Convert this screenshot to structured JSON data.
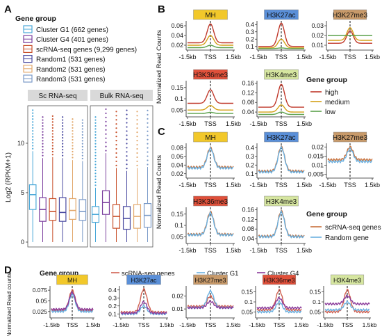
{
  "panel_labels": {
    "A": "A",
    "B": "B",
    "C": "C",
    "D": "D"
  },
  "legendA": {
    "title": "Gene group",
    "items": [
      {
        "label": "Cluster G1 (662 genes)",
        "color": "#4aa8d8"
      },
      {
        "label": "Cluster G4 (401 genes)",
        "color": "#7b3f9e"
      },
      {
        "label": "scRNA-seq genes (9,299 genes)",
        "color": "#c8502a"
      },
      {
        "label": "Random1 (531 genes)",
        "color": "#4a4aa0"
      },
      {
        "label": "Random2 (531 genes)",
        "color": "#e2a86c"
      },
      {
        "label": "Random3 (531 genes)",
        "color": "#7a9ac8"
      }
    ]
  },
  "legendB": {
    "title": "Gene group",
    "items": [
      {
        "label": "high",
        "color": "#c0392b"
      },
      {
        "label": "medium",
        "color": "#d4a017"
      },
      {
        "label": "low",
        "color": "#5aa04a"
      }
    ]
  },
  "legendC": {
    "title": "Gene group",
    "items": [
      {
        "label": "scRNA-seq genes",
        "color": "#c8703a"
      },
      {
        "label": "Random gene",
        "color": "#6ab0e0"
      }
    ]
  },
  "legendD": {
    "title": "Gene group",
    "items": [
      {
        "label": "scRNA-seq genes",
        "color": "#d06050"
      },
      {
        "label": "Cluster G1",
        "color": "#6ab0e0"
      },
      {
        "label": "Cluster G4",
        "color": "#8a3a9a"
      }
    ]
  },
  "axis_text": {
    "ylab_A": "Log2 (RPKM+1)",
    "ylab_BC": "Normalized Read Counts",
    "ylab_D": "Normalized Read counts",
    "x_ticks": [
      "-1.5kb",
      "TSS",
      "1.5kb"
    ]
  },
  "marks": {
    "MH": "MH",
    "H3K27ac": "H3K27ac",
    "H3K27me3": "H3K27me3",
    "H3K36me3": "H3K36me3",
    "H3K4me3": "H3K4me3"
  },
  "colors": {
    "MH": "#f2c82a",
    "H3K27ac": "#5a8fd8",
    "H3K27me3": "#c89a6a",
    "H3K36me3": "#e0503a",
    "H3K4me3": "#d6e6a0",
    "facet": "#d9d9d9"
  },
  "chart_data": [
    {
      "id": "A",
      "type": "box",
      "facets": [
        "Sc RNA-seq",
        "Bulk RNA-seq"
      ],
      "categories": [
        "Cluster G1",
        "Cluster G4",
        "scRNA-seq genes",
        "Random1",
        "Random2",
        "Random3"
      ],
      "yticks": [
        0,
        5,
        10
      ],
      "ylim": [
        0,
        14
      ],
      "ylabel": "Log2 (RPKM+1)",
      "series": [
        {
          "facet": "Sc RNA-seq",
          "boxes": [
            {
              "min": 0,
              "q1": 3.3,
              "median": 4.8,
              "q3": 5.8,
              "max": 9.2
            },
            {
              "min": 0,
              "q1": 2.1,
              "median": 3.3,
              "q3": 4.5,
              "max": 8.5
            },
            {
              "min": 0,
              "q1": 2.2,
              "median": 3.1,
              "q3": 4.4,
              "max": 8.6
            },
            {
              "min": 0,
              "q1": 2.1,
              "median": 3.0,
              "q3": 4.5,
              "max": 8.5
            },
            {
              "min": 0,
              "q1": 2.3,
              "median": 3.2,
              "q3": 4.4,
              "max": 8.3
            },
            {
              "min": 0,
              "q1": 2.2,
              "median": 3.1,
              "q3": 4.3,
              "max": 8.2
            }
          ]
        },
        {
          "facet": "Bulk RNA-seq",
          "boxes": [
            {
              "min": 0,
              "q1": 2.0,
              "median": 2.8,
              "q3": 3.6,
              "max": 5.5
            },
            {
              "min": 0,
              "q1": 2.8,
              "median": 4.0,
              "q3": 5.2,
              "max": 9.0
            },
            {
              "min": 0,
              "q1": 1.4,
              "median": 2.6,
              "q3": 3.8,
              "max": 7.5
            },
            {
              "min": 0,
              "q1": 1.3,
              "median": 2.4,
              "q3": 3.6,
              "max": 7.2
            },
            {
              "min": 0,
              "q1": 1.4,
              "median": 2.6,
              "q3": 3.8,
              "max": 7.5
            },
            {
              "min": 0,
              "q1": 1.5,
              "median": 2.7,
              "q3": 3.9,
              "max": 7.6
            }
          ]
        }
      ]
    },
    {
      "id": "B",
      "type": "line",
      "x": [
        "-1.5kb",
        "TSS",
        "1.5kb"
      ],
      "groups": [
        "high",
        "medium",
        "low"
      ],
      "panels": [
        {
          "mark": "MH",
          "yticks": [
            0.02,
            0.04,
            0.06
          ],
          "ylim": [
            0.01,
            0.07
          ],
          "peaks": [
            0.064,
            0.04,
            0.02
          ],
          "base": [
            0.025,
            0.02,
            0.015
          ]
        },
        {
          "mark": "H3K27ac",
          "yticks": [
            0.1,
            0.2,
            0.3,
            0.4
          ],
          "ylim": [
            0.05,
            0.45
          ],
          "peaks": [
            0.42,
            0.2,
            0.08
          ],
          "base": [
            0.1,
            0.08,
            0.07
          ]
        },
        {
          "mark": "H3K27me3",
          "yticks": [
            0.01,
            0.02,
            0.03
          ],
          "ylim": [
            0.005,
            0.035
          ],
          "peaks": [
            0.025,
            0.028,
            0.02
          ],
          "base": [
            0.012,
            0.015,
            0.02
          ]
        },
        {
          "mark": "H3K36me3",
          "yticks": [
            0.05,
            0.1,
            0.15
          ],
          "ylim": [
            0.02,
            0.18
          ],
          "peaks": [
            0.14,
            0.07,
            0.04
          ],
          "base": [
            0.08,
            0.05,
            0.035
          ]
        },
        {
          "mark": "H3K4me3",
          "yticks": [
            0.04,
            0.08,
            0.12,
            0.16
          ],
          "ylim": [
            0.02,
            0.17
          ],
          "peaks": [
            0.155,
            0.07,
            0.04
          ],
          "base": [
            0.06,
            0.04,
            0.03
          ]
        }
      ]
    },
    {
      "id": "C",
      "type": "line",
      "x": [
        "-1.5kb",
        "TSS",
        "1.5kb"
      ],
      "groups": [
        "scRNA-seq genes",
        "Random gene"
      ],
      "panels": [
        {
          "mark": "MH",
          "yticks": [
            0.02,
            0.04,
            0.06,
            0.08
          ],
          "ylim": [
            0.01,
            0.09
          ],
          "peaks": [
            0.08,
            0.078
          ],
          "base": [
            0.035,
            0.033
          ]
        },
        {
          "mark": "H3K27ac",
          "yticks": [
            0.1,
            0.2,
            0.3,
            0.4
          ],
          "ylim": [
            0.05,
            0.45
          ],
          "peaks": [
            0.41,
            0.4
          ],
          "base": [
            0.13,
            0.12
          ]
        },
        {
          "mark": "H3K27me3",
          "yticks": [
            0.005,
            0.01,
            0.015,
            0.02
          ],
          "ylim": [
            0.003,
            0.022
          ],
          "peaks": [
            0.02,
            0.019
          ],
          "base": [
            0.013,
            0.012
          ]
        },
        {
          "mark": "H3K36me3",
          "yticks": [
            0.05,
            0.1,
            0.15
          ],
          "ylim": [
            0.02,
            0.18
          ],
          "peaks": [
            0.16,
            0.155
          ],
          "base": [
            0.06,
            0.058
          ]
        },
        {
          "mark": "H3K4me3",
          "yticks": [
            0.04,
            0.08,
            0.12,
            0.16
          ],
          "ylim": [
            0.02,
            0.17
          ],
          "peaks": [
            0.155,
            0.15
          ],
          "base": [
            0.05,
            0.048
          ]
        }
      ]
    },
    {
      "id": "D",
      "type": "line",
      "x": [
        "-1.5kb",
        "TSS",
        "1.5kb"
      ],
      "groups": [
        "scRNA-seq genes",
        "Cluster G1",
        "Cluster G4"
      ],
      "panels": [
        {
          "mark": "MH",
          "yticks": [
            0.025,
            0.05,
            0.075
          ],
          "ylim": [
            0.01,
            0.085
          ],
          "peaks": [
            0.075,
            0.065,
            0.07
          ],
          "base": [
            0.028,
            0.025,
            0.03
          ]
        },
        {
          "mark": "H3K27ac",
          "yticks": [
            0.1,
            0.2,
            0.3,
            0.4
          ],
          "ylim": [
            0.05,
            0.45
          ],
          "peaks": [
            0.41,
            0.2,
            0.25
          ],
          "base": [
            0.12,
            0.1,
            0.11
          ]
        },
        {
          "mark": "H3K27me3",
          "yticks": [
            0.01,
            0.02
          ],
          "ylim": [
            0.003,
            0.028
          ],
          "peaks": [
            0.02,
            0.024,
            0.016
          ],
          "base": [
            0.012,
            0.011,
            0.011
          ]
        },
        {
          "mark": "H3K36me3",
          "yticks": [
            0.05,
            0.1,
            0.15
          ],
          "ylim": [
            0.02,
            0.18
          ],
          "peaks": [
            0.16,
            0.1,
            0.12
          ],
          "base": [
            0.06,
            0.05,
            0.07
          ]
        },
        {
          "mark": "H3K4me3",
          "yticks": [
            0.05,
            0.1,
            0.15
          ],
          "ylim": [
            0.02,
            0.18
          ],
          "peaks": [
            0.16,
            0.1,
            0.13
          ],
          "base": [
            0.05,
            0.06,
            0.09
          ]
        }
      ]
    }
  ]
}
